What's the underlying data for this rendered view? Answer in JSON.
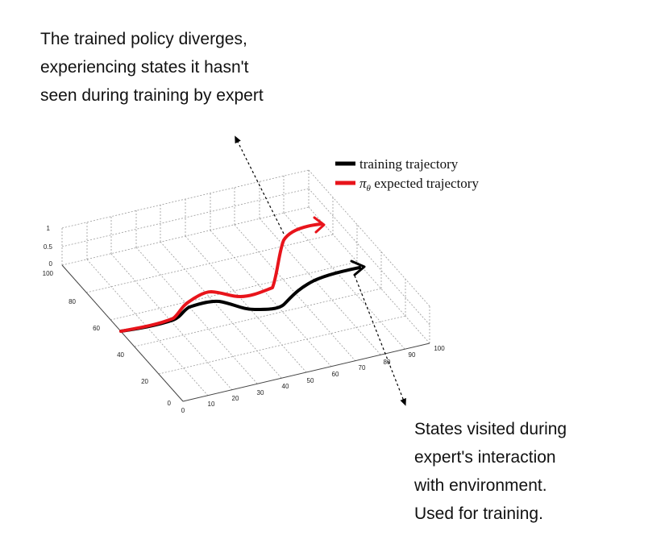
{
  "annotations": {
    "top": [
      "The trained policy diverges,",
      "experiencing states it hasn't",
      "seen during training by expert"
    ],
    "bottom": [
      "States visited during",
      "expert's interaction",
      "with environment.",
      "Used for training."
    ]
  },
  "legend": {
    "training": "training trajectory",
    "expected_symbol": "π",
    "expected_sub": "θ",
    "expected_rest": " expected trajectory"
  },
  "axes": {
    "z_ticks": [
      "1",
      "0.5",
      "0"
    ],
    "y_ticks": [
      "100",
      "80",
      "60",
      "40",
      "20",
      "0"
    ],
    "x_ticks": [
      "0",
      "10",
      "20",
      "30",
      "40",
      "50",
      "60",
      "70",
      "80",
      "90",
      "100"
    ]
  },
  "colors": {
    "training": "#000000",
    "expected": "#e8141b",
    "grid": "#9a9a9a"
  }
}
